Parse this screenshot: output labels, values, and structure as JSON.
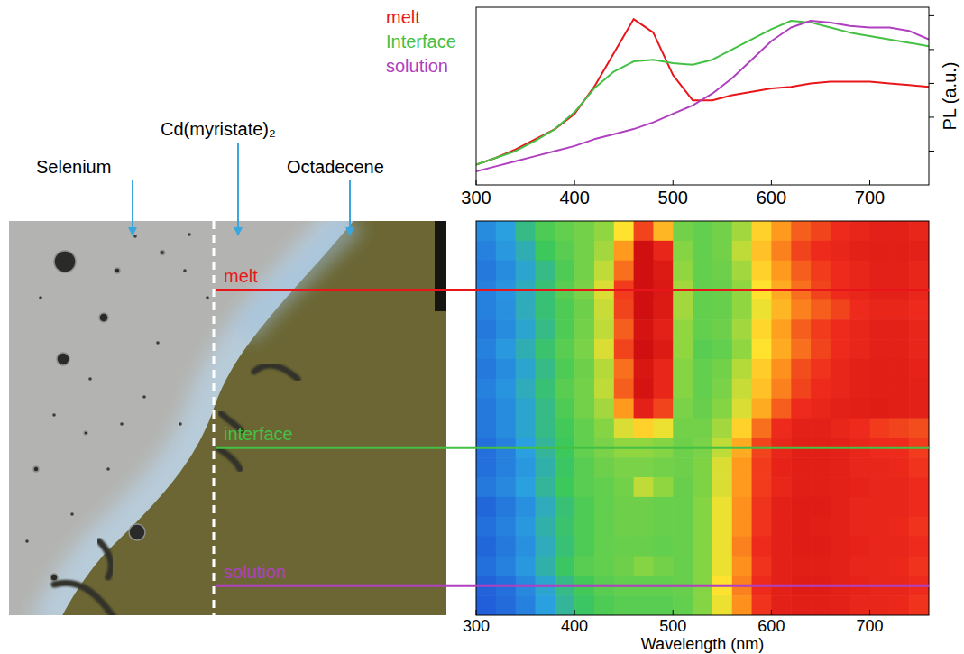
{
  "chart_data": [
    {
      "type": "line",
      "x": [
        300,
        320,
        340,
        360,
        380,
        400,
        420,
        440,
        460,
        480,
        500,
        520,
        540,
        560,
        580,
        600,
        620,
        640,
        660,
        680,
        700,
        720,
        740,
        760
      ],
      "series": [
        {
          "name": "melt",
          "color": "#e8161b",
          "values": [
            0.12,
            0.16,
            0.21,
            0.27,
            0.33,
            0.42,
            0.58,
            0.78,
            0.98,
            0.9,
            0.65,
            0.5,
            0.5,
            0.53,
            0.55,
            0.57,
            0.58,
            0.6,
            0.61,
            0.61,
            0.61,
            0.6,
            0.59,
            0.58
          ]
        },
        {
          "name": "Interface",
          "color": "#44c044",
          "values": [
            0.12,
            0.16,
            0.2,
            0.26,
            0.33,
            0.43,
            0.57,
            0.67,
            0.73,
            0.74,
            0.72,
            0.71,
            0.74,
            0.8,
            0.86,
            0.92,
            0.97,
            0.96,
            0.93,
            0.9,
            0.88,
            0.86,
            0.84,
            0.82
          ]
        },
        {
          "name": "solution",
          "color": "#b040c0",
          "values": [
            0.08,
            0.11,
            0.14,
            0.17,
            0.2,
            0.23,
            0.27,
            0.3,
            0.33,
            0.37,
            0.42,
            0.47,
            0.54,
            0.63,
            0.74,
            0.85,
            0.93,
            0.97,
            0.96,
            0.94,
            0.93,
            0.93,
            0.91,
            0.86
          ]
        }
      ],
      "xlim": [
        300,
        760
      ],
      "xticks": [
        300,
        400,
        500,
        600,
        700
      ],
      "ylim": [
        0,
        1.05
      ],
      "yticks": [
        0.2,
        0.4,
        0.6,
        0.8,
        1
      ],
      "ylabel": "PL (a.u.)",
      "legend": "left",
      "tick_labels": "x"
    },
    {
      "type": "heatmap",
      "x_edges": [
        300,
        320,
        340,
        360,
        380,
        400,
        420,
        440,
        460,
        480,
        500,
        520,
        540,
        560,
        580,
        600,
        620,
        640,
        660,
        680,
        700,
        720,
        740,
        760
      ],
      "rows": [
        [
          0.15,
          0.2,
          0.3,
          0.38,
          0.42,
          0.45,
          0.5,
          0.62,
          0.85,
          0.7,
          0.45,
          0.42,
          0.45,
          0.52,
          0.65,
          0.75,
          0.82,
          0.85,
          0.88,
          0.9,
          0.92,
          0.92,
          0.9
        ],
        [
          0.12,
          0.18,
          0.25,
          0.35,
          0.4,
          0.45,
          0.52,
          0.75,
          1.0,
          0.9,
          0.48,
          0.42,
          0.45,
          0.55,
          0.68,
          0.78,
          0.85,
          0.88,
          0.9,
          0.92,
          0.93,
          0.93,
          0.92
        ],
        [
          0.1,
          0.15,
          0.22,
          0.3,
          0.38,
          0.45,
          0.55,
          0.8,
          1.0,
          0.95,
          0.5,
          0.42,
          0.44,
          0.52,
          0.65,
          0.75,
          0.82,
          0.86,
          0.88,
          0.9,
          0.92,
          0.92,
          0.9
        ],
        [
          0.12,
          0.17,
          0.24,
          0.32,
          0.4,
          0.46,
          0.58,
          0.86,
          1.0,
          0.96,
          0.52,
          0.42,
          0.43,
          0.5,
          0.62,
          0.72,
          0.8,
          0.85,
          0.88,
          0.9,
          0.92,
          0.92,
          0.9
        ],
        [
          0.12,
          0.16,
          0.24,
          0.32,
          0.38,
          0.44,
          0.56,
          0.85,
          1.0,
          0.95,
          0.52,
          0.42,
          0.43,
          0.5,
          0.6,
          0.7,
          0.78,
          0.82,
          0.85,
          0.88,
          0.9,
          0.9,
          0.88
        ],
        [
          0.1,
          0.15,
          0.22,
          0.3,
          0.38,
          0.45,
          0.55,
          0.82,
          0.98,
          0.92,
          0.5,
          0.42,
          0.44,
          0.52,
          0.64,
          0.74,
          0.82,
          0.86,
          0.88,
          0.9,
          0.92,
          0.92,
          0.9
        ],
        [
          0.12,
          0.18,
          0.25,
          0.33,
          0.4,
          0.46,
          0.58,
          0.85,
          1.0,
          0.95,
          0.5,
          0.4,
          0.42,
          0.5,
          0.62,
          0.72,
          0.8,
          0.85,
          0.88,
          0.9,
          0.92,
          0.92,
          0.9
        ],
        [
          0.1,
          0.15,
          0.22,
          0.3,
          0.38,
          0.44,
          0.54,
          0.8,
          0.97,
          0.9,
          0.48,
          0.42,
          0.45,
          0.54,
          0.66,
          0.76,
          0.84,
          0.87,
          0.9,
          0.92,
          0.93,
          0.93,
          0.91
        ],
        [
          0.12,
          0.17,
          0.24,
          0.32,
          0.4,
          0.45,
          0.55,
          0.82,
          0.98,
          0.9,
          0.48,
          0.42,
          0.46,
          0.56,
          0.68,
          0.78,
          0.85,
          0.88,
          0.9,
          0.92,
          0.93,
          0.93,
          0.92
        ],
        [
          0.1,
          0.15,
          0.22,
          0.3,
          0.38,
          0.45,
          0.52,
          0.75,
          0.92,
          0.85,
          0.46,
          0.43,
          0.48,
          0.58,
          0.72,
          0.82,
          0.88,
          0.9,
          0.92,
          0.93,
          0.94,
          0.93,
          0.92
        ],
        [
          0.1,
          0.15,
          0.22,
          0.3,
          0.36,
          0.42,
          0.48,
          0.58,
          0.65,
          0.6,
          0.45,
          0.45,
          0.52,
          0.65,
          0.8,
          0.88,
          0.92,
          0.92,
          0.9,
          0.88,
          0.86,
          0.85,
          0.84
        ],
        [
          0.08,
          0.12,
          0.2,
          0.28,
          0.35,
          0.42,
          0.46,
          0.5,
          0.5,
          0.48,
          0.44,
          0.46,
          0.55,
          0.72,
          0.85,
          0.9,
          0.93,
          0.93,
          0.92,
          0.9,
          0.88,
          0.88,
          0.86
        ],
        [
          0.08,
          0.12,
          0.18,
          0.26,
          0.34,
          0.4,
          0.44,
          0.46,
          0.46,
          0.45,
          0.44,
          0.47,
          0.58,
          0.75,
          0.86,
          0.91,
          0.93,
          0.93,
          0.92,
          0.9,
          0.9,
          0.89,
          0.87
        ],
        [
          0.1,
          0.14,
          0.2,
          0.28,
          0.35,
          0.4,
          0.42,
          0.45,
          0.55,
          0.5,
          0.43,
          0.47,
          0.58,
          0.75,
          0.86,
          0.9,
          0.93,
          0.93,
          0.92,
          0.91,
          0.9,
          0.9,
          0.88
        ],
        [
          0.06,
          0.1,
          0.16,
          0.24,
          0.32,
          0.38,
          0.42,
          0.44,
          0.44,
          0.43,
          0.43,
          0.48,
          0.6,
          0.76,
          0.87,
          0.92,
          0.94,
          0.94,
          0.92,
          0.9,
          0.9,
          0.9,
          0.88
        ],
        [
          0.08,
          0.12,
          0.18,
          0.26,
          0.33,
          0.38,
          0.42,
          0.44,
          0.44,
          0.43,
          0.43,
          0.48,
          0.6,
          0.76,
          0.87,
          0.92,
          0.94,
          0.93,
          0.92,
          0.9,
          0.9,
          0.89,
          0.87
        ],
        [
          0.06,
          0.1,
          0.16,
          0.24,
          0.32,
          0.38,
          0.42,
          0.43,
          0.43,
          0.42,
          0.43,
          0.48,
          0.6,
          0.78,
          0.88,
          0.92,
          0.94,
          0.94,
          0.92,
          0.91,
          0.9,
          0.9,
          0.88
        ],
        [
          0.08,
          0.12,
          0.18,
          0.26,
          0.34,
          0.4,
          0.42,
          0.44,
          0.48,
          0.45,
          0.43,
          0.48,
          0.6,
          0.76,
          0.87,
          0.92,
          0.93,
          0.93,
          0.92,
          0.9,
          0.9,
          0.89,
          0.87
        ],
        [
          0.05,
          0.08,
          0.14,
          0.22,
          0.3,
          0.36,
          0.4,
          0.42,
          0.42,
          0.42,
          0.43,
          0.48,
          0.62,
          0.78,
          0.88,
          0.92,
          0.94,
          0.94,
          0.92,
          0.91,
          0.9,
          0.9,
          0.88
        ],
        [
          0.04,
          0.07,
          0.12,
          0.2,
          0.28,
          0.34,
          0.38,
          0.4,
          0.4,
          0.4,
          0.42,
          0.48,
          0.6,
          0.76,
          0.87,
          0.92,
          0.93,
          0.93,
          0.92,
          0.9,
          0.9,
          0.89,
          0.87
        ]
      ],
      "clim": [
        0,
        1
      ],
      "xlim": [
        300,
        760
      ],
      "xticks": [
        300,
        400,
        500,
        600,
        700
      ],
      "xlabel": "Wavelength (nm)",
      "tick_labels": "x",
      "markers": [
        {
          "label": "melt",
          "row": 3,
          "color": "#e8161b"
        },
        {
          "label": "interface",
          "row": 11,
          "color": "#44c044"
        },
        {
          "label": "solution",
          "row": 18,
          "color": "#b040c0"
        }
      ]
    }
  ],
  "micrograph": {
    "labels": [
      "Selenium",
      "Cd(myristate)₂",
      "Octadecene"
    ]
  }
}
